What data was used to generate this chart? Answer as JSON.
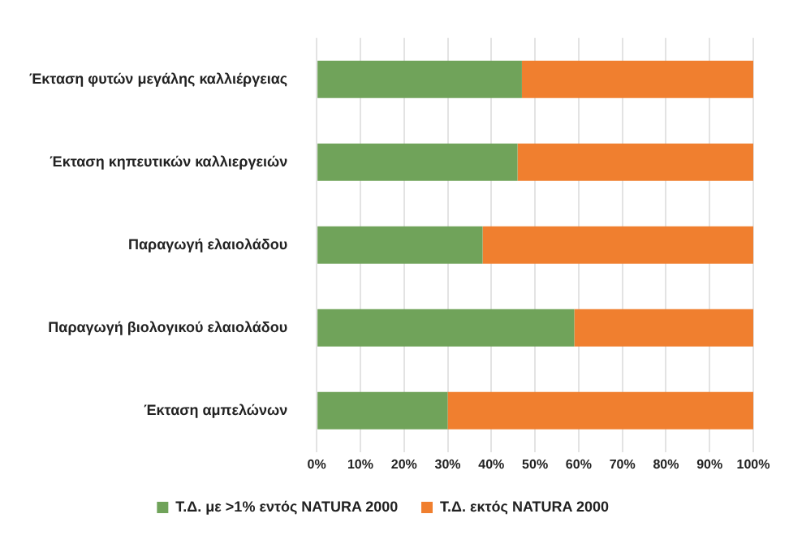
{
  "chart_data": {
    "type": "bar",
    "orientation": "horizontal",
    "stacked": true,
    "categories": [
      "Έκταση φυτών μεγάλης καλλιέργειας",
      "Έκταση κηπευτικών καλλιεργειών",
      "Παραγωγή ελαιολάδου",
      "Παραγωγή βιολογικού ελαιολάδου",
      "Έκταση αμπελώνων"
    ],
    "series": [
      {
        "name": "Τ.Δ. με >1% εντός NATURA 2000",
        "color": "#70a35a",
        "values": [
          47,
          46,
          38,
          59,
          30
        ]
      },
      {
        "name": "Τ.Δ. εκτός NATURA 2000",
        "color": "#f07f2f",
        "values": [
          53,
          54,
          62,
          41,
          70
        ]
      }
    ],
    "xlim": [
      0,
      100
    ],
    "xticks": [
      {
        "value": 0,
        "label": "0%"
      },
      {
        "value": 10,
        "label": "10%"
      },
      {
        "value": 20,
        "label": "20%"
      },
      {
        "value": 30,
        "label": "30%"
      },
      {
        "value": 40,
        "label": "40%"
      },
      {
        "value": 50,
        "label": "50%"
      },
      {
        "value": 60,
        "label": "60%"
      },
      {
        "value": 70,
        "label": "70%"
      },
      {
        "value": 80,
        "label": "80%"
      },
      {
        "value": 90,
        "label": "90%"
      },
      {
        "value": 100,
        "label": "100%"
      }
    ],
    "grid": "x",
    "legend": "bottom"
  }
}
